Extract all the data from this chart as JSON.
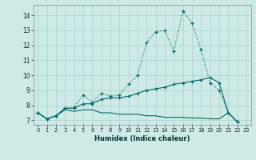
{
  "xlabel": "Humidex (Indice chaleur)",
  "ylabel": "",
  "bg_color": "#ceeae6",
  "grid_color": "#aed4d0",
  "line_color": "#006868",
  "xlim": [
    -0.5,
    23.5
  ],
  "ylim": [
    6.7,
    14.7
  ],
  "xticks": [
    0,
    1,
    2,
    3,
    4,
    5,
    6,
    7,
    8,
    9,
    10,
    11,
    12,
    13,
    14,
    15,
    16,
    17,
    18,
    19,
    20,
    21,
    22,
    23
  ],
  "yticks": [
    7,
    8,
    9,
    10,
    11,
    12,
    13,
    14
  ],
  "line1_x": [
    0,
    1,
    2,
    3,
    4,
    5,
    6,
    7,
    8,
    9,
    10,
    11,
    12,
    13,
    14,
    15,
    16,
    17,
    18,
    19,
    20,
    21,
    22
  ],
  "line1_y": [
    7.5,
    7.1,
    7.3,
    7.8,
    7.9,
    8.7,
    8.2,
    8.8,
    8.6,
    8.7,
    9.4,
    10.0,
    12.2,
    12.9,
    13.0,
    11.6,
    14.3,
    13.5,
    11.7,
    9.5,
    9.0,
    7.5,
    6.9
  ],
  "line2_x": [
    0,
    1,
    2,
    3,
    4,
    5,
    6,
    7,
    8,
    9,
    10,
    11,
    12,
    13,
    14,
    15,
    16,
    17,
    18,
    19,
    20,
    21,
    22
  ],
  "line2_y": [
    7.5,
    7.1,
    7.3,
    7.8,
    7.8,
    8.1,
    8.1,
    8.4,
    8.5,
    8.5,
    8.6,
    8.8,
    9.0,
    9.1,
    9.2,
    9.4,
    9.5,
    9.6,
    9.7,
    9.85,
    9.5,
    7.5,
    6.9
  ],
  "line3_x": [
    0,
    1,
    2,
    3,
    4,
    5,
    6,
    7,
    8,
    9,
    10,
    11,
    12,
    13,
    14,
    15,
    16,
    17,
    18,
    19,
    20,
    21,
    22
  ],
  "line3_y": [
    7.5,
    7.1,
    7.3,
    7.7,
    7.6,
    7.7,
    7.7,
    7.5,
    7.5,
    7.4,
    7.4,
    7.4,
    7.3,
    7.3,
    7.2,
    7.2,
    7.2,
    7.15,
    7.15,
    7.1,
    7.1,
    7.5,
    6.9
  ]
}
